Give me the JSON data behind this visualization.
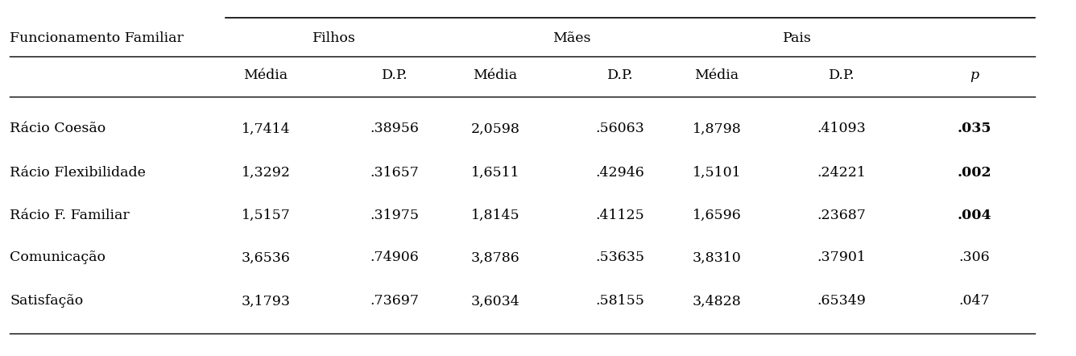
{
  "rows": [
    [
      "Rácio Coesão",
      "1,7414",
      ".38956",
      "2,0598",
      ".56063",
      "1,8798",
      ".41093",
      ".035"
    ],
    [
      "Rácio Flexibilidade",
      "1,3292",
      ".31657",
      "1,6511",
      ".42946",
      "1,5101",
      ".24221",
      ".002"
    ],
    [
      "Rácio F. Familiar",
      "1,5157",
      ".31975",
      "1,8145",
      ".41125",
      "1,6596",
      ".23687",
      ".004"
    ],
    [
      "Comunicação",
      "3,6536",
      ".74906",
      "3,8786",
      ".53635",
      "3,8310",
      ".37901",
      ".306"
    ],
    [
      "Satisfação",
      "3,1793",
      ".73697",
      "3,6034",
      ".58155",
      "3,4828",
      ".65349",
      ".047"
    ]
  ],
  "bold_p": [
    true,
    true,
    true,
    false,
    false
  ],
  "line_color": "#000000",
  "text_color": "#000000",
  "bg_color": "#ffffff",
  "font_size": 12.5
}
